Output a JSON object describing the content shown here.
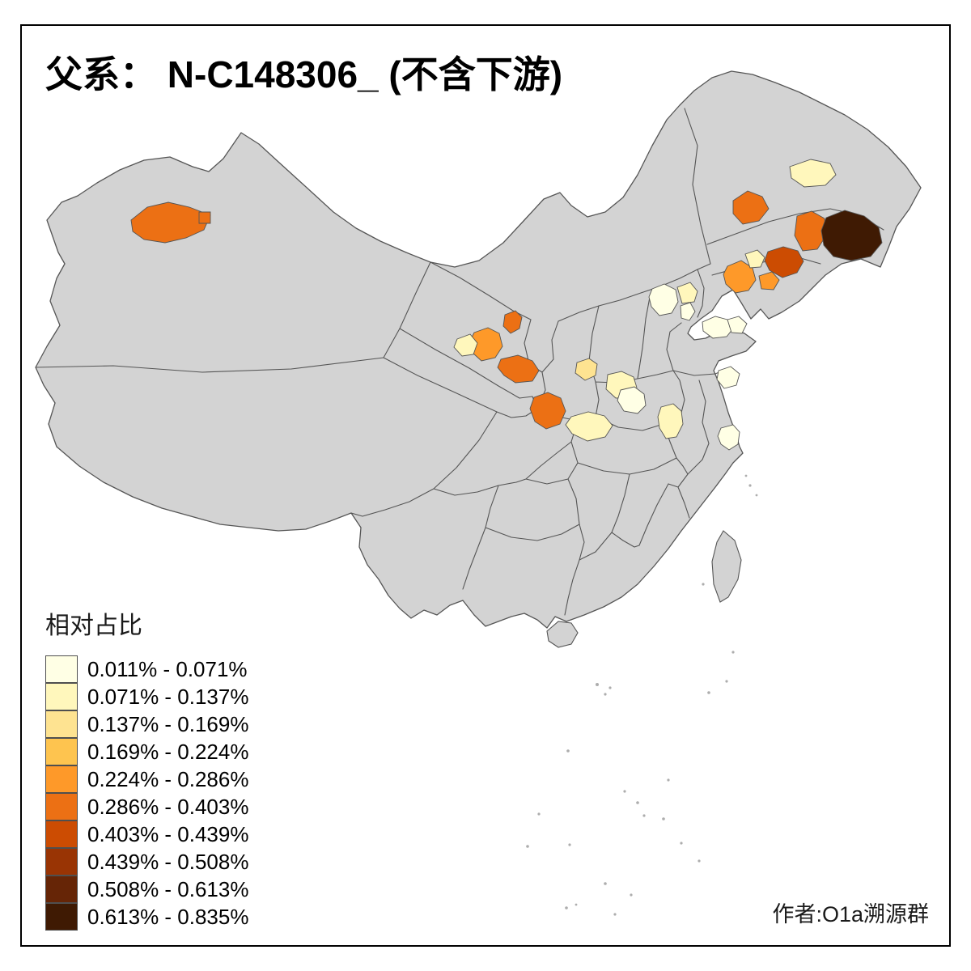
{
  "title": "父系： N-C148306_ (不含下游)",
  "legend": {
    "title": "相对占比",
    "classes": [
      {
        "label": "0.011% - 0.071%",
        "color": "#FFFFE5"
      },
      {
        "label": "0.071% - 0.137%",
        "color": "#FFF7BC"
      },
      {
        "label": "0.137% - 0.169%",
        "color": "#FEE391"
      },
      {
        "label": "0.169% - 0.224%",
        "color": "#FEC44F"
      },
      {
        "label": "0.224% - 0.286%",
        "color": "#FE9929"
      },
      {
        "label": "0.286% - 0.403%",
        "color": "#EC7014"
      },
      {
        "label": "0.403% - 0.439%",
        "color": "#CC4C02"
      },
      {
        "label": "0.439% - 0.508%",
        "color": "#993404"
      },
      {
        "label": "0.508% - 0.613%",
        "color": "#662506"
      },
      {
        "label": "0.613% - 0.835%",
        "color": "#3F1A03"
      }
    ]
  },
  "attribution": "作者:O1a溯源群",
  "map": {
    "base_fill": "#D3D3D3",
    "border_color": "#555555",
    "island_color": "#ADADAD",
    "background": "#FFFFFF",
    "regions": [
      {
        "name": "xinjiang-ili-orange",
        "class": 5
      },
      {
        "name": "xinjiang-small-orange",
        "class": 5
      },
      {
        "name": "inner-mongolia-ne-orange",
        "class": 5
      },
      {
        "name": "heilongjiang-west-cream",
        "class": 1
      },
      {
        "name": "jilin-central-orange",
        "class": 5
      },
      {
        "name": "jilin-yanbian-dark",
        "class": 9
      },
      {
        "name": "liaoning-ne-redbrown",
        "class": 6
      },
      {
        "name": "shenyang-orange",
        "class": 4
      },
      {
        "name": "liaoning-cream",
        "class": 1
      },
      {
        "name": "liaoning-orange-b",
        "class": 4
      },
      {
        "name": "beijing-pale",
        "class": 0
      },
      {
        "name": "chengde-pale",
        "class": 1
      },
      {
        "name": "tianjin-pale",
        "class": 0
      },
      {
        "name": "shandong-pale-a",
        "class": 0
      },
      {
        "name": "shandong-pale-b",
        "class": 0
      },
      {
        "name": "jiangsu-coast-pale",
        "class": 0
      },
      {
        "name": "gansu-north-orange",
        "class": 5
      },
      {
        "name": "lanzhou-orange",
        "class": 4
      },
      {
        "name": "qinghai-haidong-cream",
        "class": 1
      },
      {
        "name": "dingxi-orange",
        "class": 5
      },
      {
        "name": "hanzhong-orange",
        "class": 5
      },
      {
        "name": "shiyan-cream",
        "class": 1
      },
      {
        "name": "shanxi-south-yellow",
        "class": 2
      },
      {
        "name": "henan-west-pale",
        "class": 1
      },
      {
        "name": "henan-central-pale",
        "class": 0
      },
      {
        "name": "anhui-pale",
        "class": 1
      },
      {
        "name": "shanghai-pale",
        "class": 0
      }
    ]
  }
}
